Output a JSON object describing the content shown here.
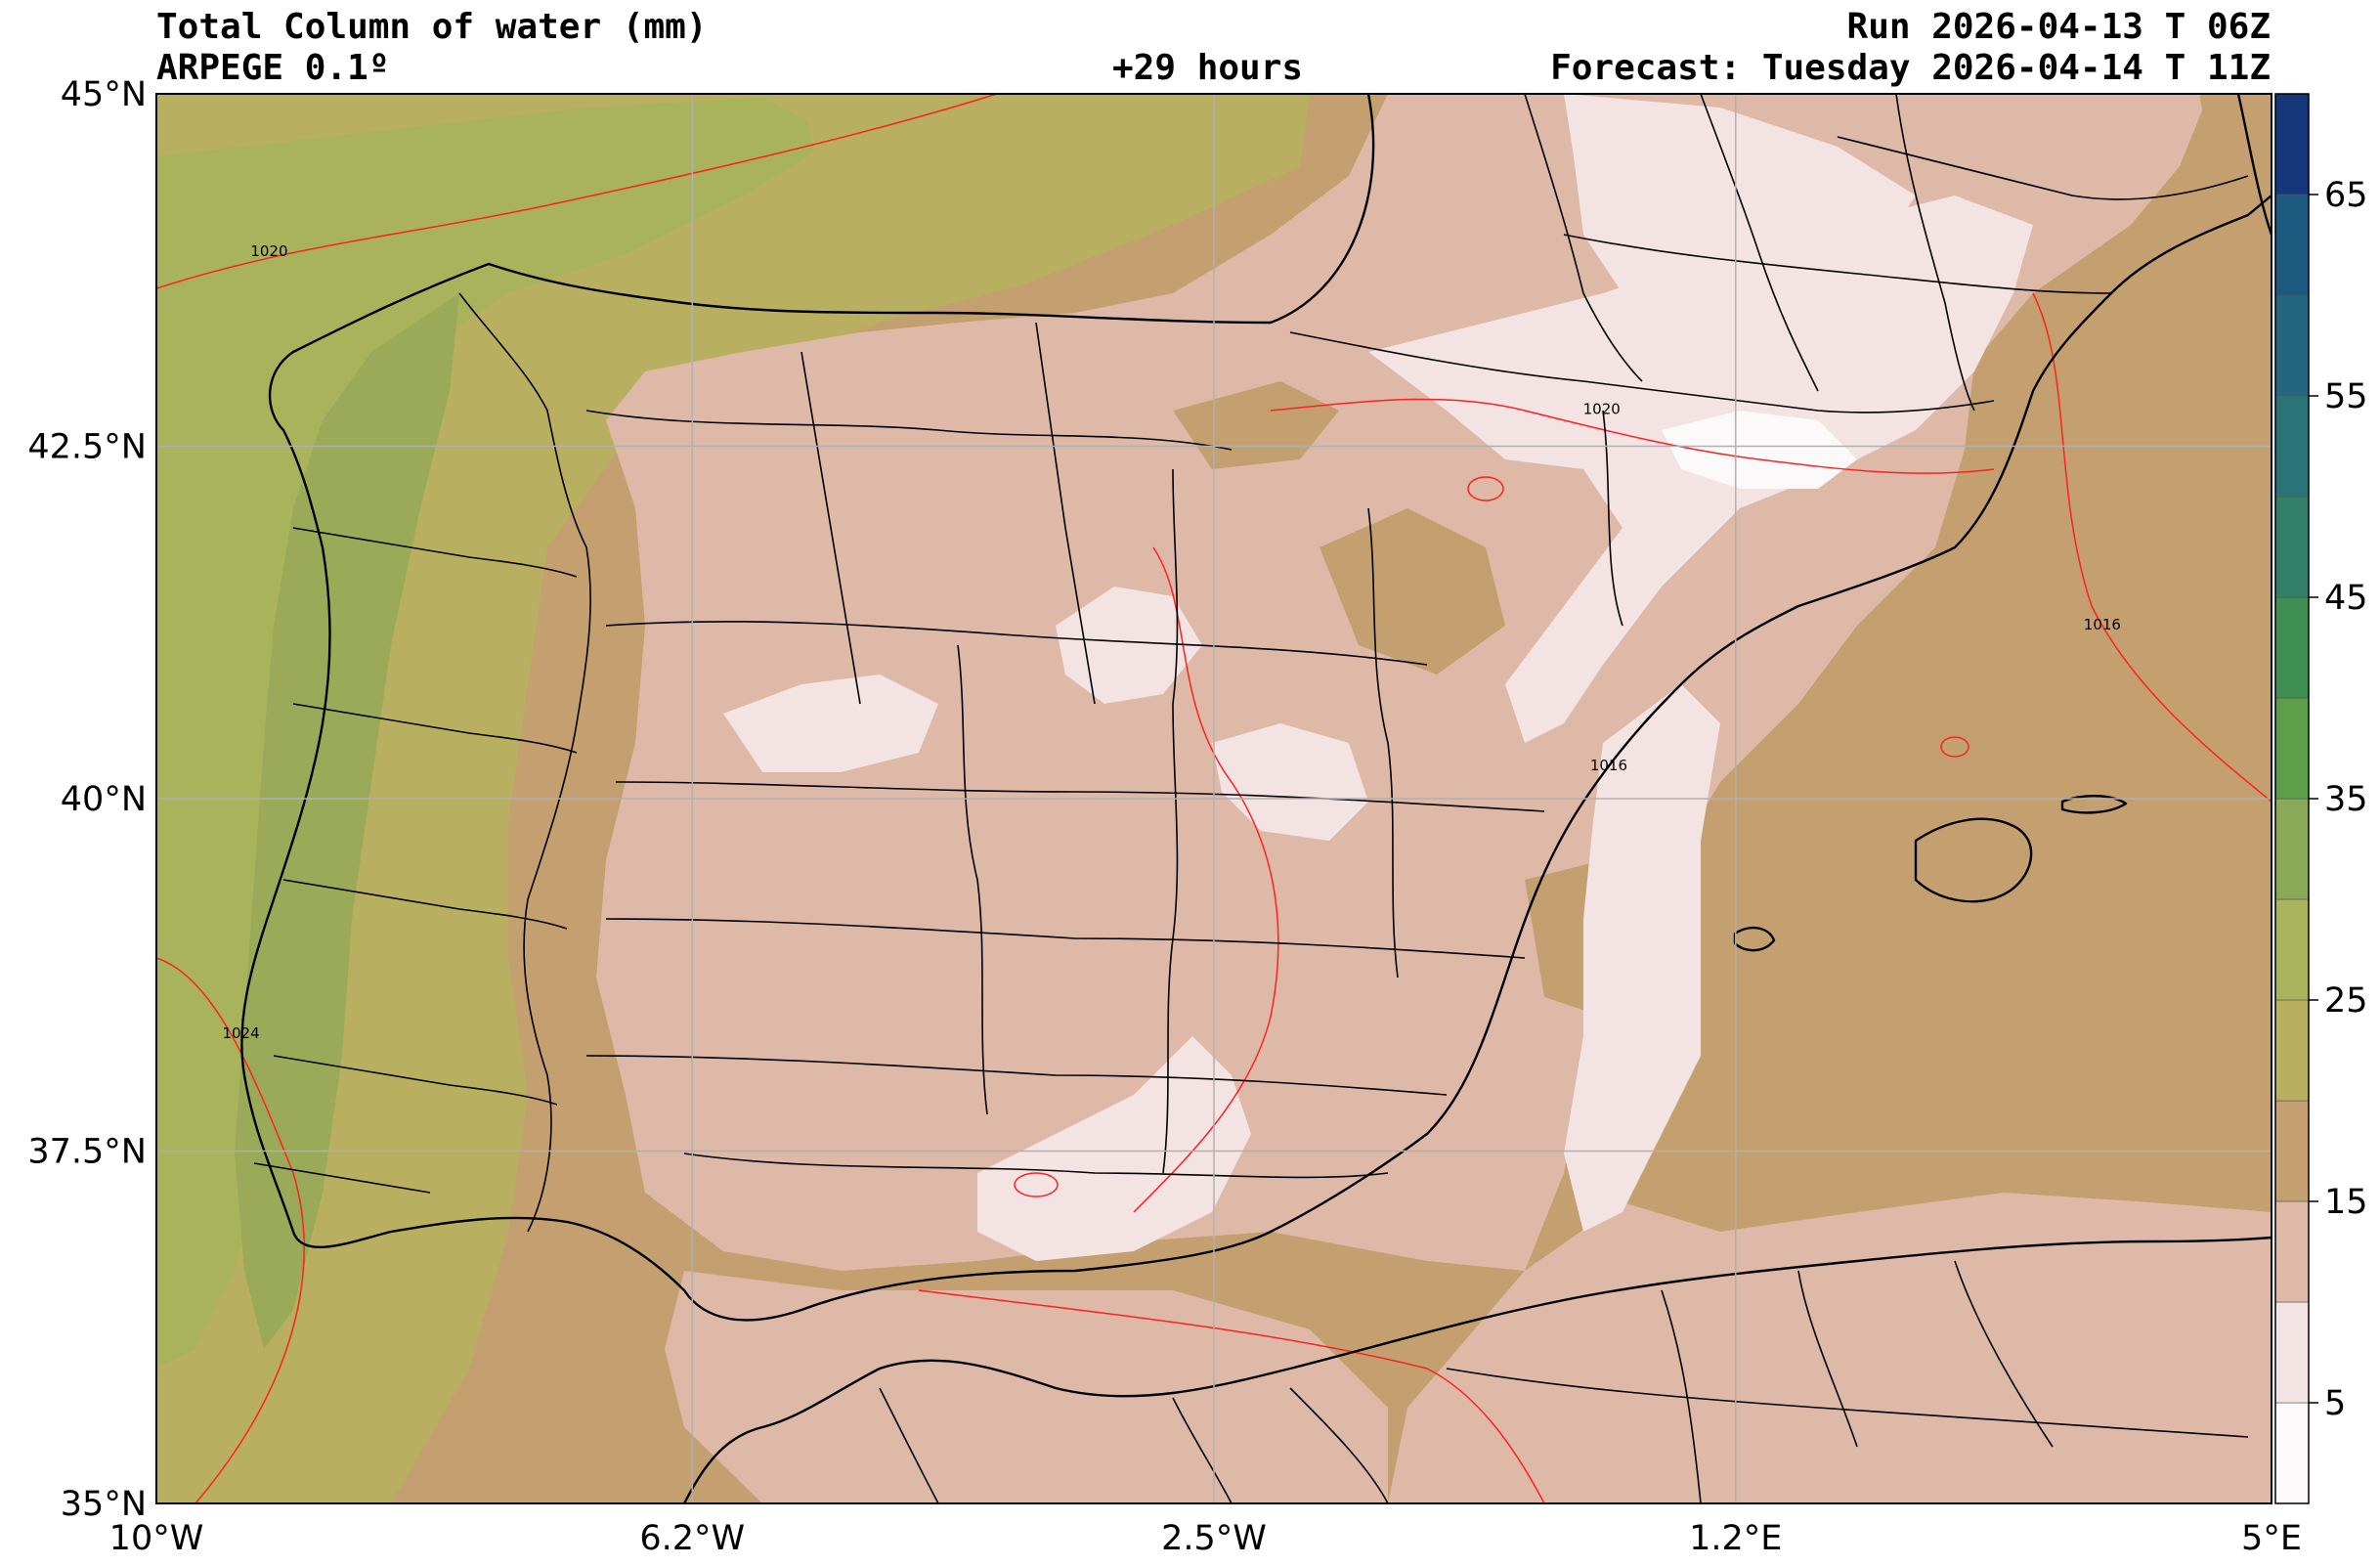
{
  "header": {
    "title": "Total Column of water (mm)",
    "model": "ARPEGE 0.1º",
    "lead": "+29 hours",
    "run": "Run 2026-04-13 T 06Z",
    "forecast": "Forecast: Tuesday 2026-04-14 T 11Z"
  },
  "axes": {
    "lat_ticks": [
      {
        "value": 45,
        "label": "45°N"
      },
      {
        "value": 42.5,
        "label": "42.5°N"
      },
      {
        "value": 40,
        "label": "40°N"
      },
      {
        "value": 37.5,
        "label": "37.5°N"
      },
      {
        "value": 35,
        "label": "35°N"
      }
    ],
    "lon_ticks": [
      {
        "value": -10,
        "label": "10°W"
      },
      {
        "value": -6.2,
        "label": "6.2°W"
      },
      {
        "value": -2.5,
        "label": "2.5°W"
      },
      {
        "value": 1.2,
        "label": "1.2°E"
      },
      {
        "value": 5,
        "label": "5°E"
      }
    ],
    "lon_range": [
      -10,
      5
    ],
    "lat_range": [
      35,
      45
    ],
    "grid": true
  },
  "colorbar": {
    "levels": [
      0,
      5,
      10,
      15,
      20,
      25,
      30,
      35,
      40,
      45,
      50,
      55,
      60,
      65,
      70
    ],
    "colors": [
      "#fbf9fa",
      "#f3e3e3",
      "#deb9a8",
      "#c4a070",
      "#b8af60",
      "#a8b35c",
      "#88aa58",
      "#5d9e48",
      "#3f8e52",
      "#338068",
      "#2a7478",
      "#236680",
      "#1c5a80",
      "#14367a",
      "#000000"
    ],
    "tick_labels": [
      {
        "value": 5,
        "label": "5"
      },
      {
        "value": 15,
        "label": "15"
      },
      {
        "value": 25,
        "label": "25"
      },
      {
        "value": 35,
        "label": "35"
      },
      {
        "value": 45,
        "label": "45"
      },
      {
        "value": 55,
        "label": "55"
      },
      {
        "value": 65,
        "label": "65"
      }
    ]
  },
  "isobars": {
    "color": "#ff2020",
    "labels": [
      {
        "text": "1020",
        "lon": -9.2,
        "lat": 43.85
      },
      {
        "text": "1020",
        "lon": 0.25,
        "lat": 42.73
      },
      {
        "text": "1016",
        "lon": 0.3,
        "lat": 40.2
      },
      {
        "text": "1016",
        "lon": 3.8,
        "lat": 41.2
      },
      {
        "text": "1024",
        "lon": -9.4,
        "lat": 38.3
      }
    ]
  }
}
